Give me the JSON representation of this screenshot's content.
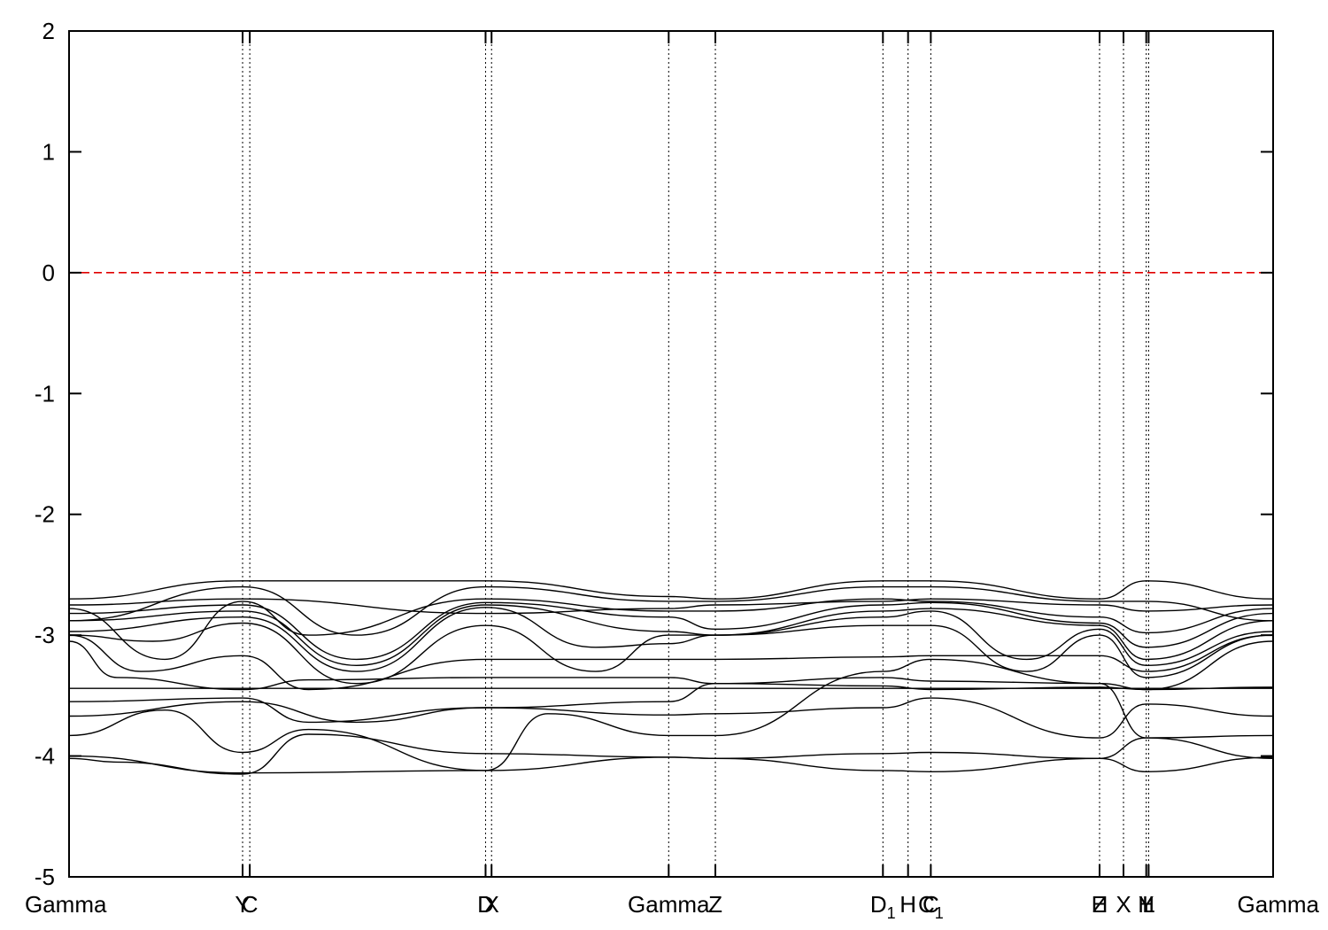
{
  "chart_data": {
    "type": "line",
    "title": "",
    "xlabel": "",
    "ylabel": "",
    "ylim": [
      -5,
      2
    ],
    "xlim": [
      0,
      5.03
    ],
    "y_ticks": [
      2,
      1,
      0,
      -1,
      -2,
      -3,
      -4,
      -5
    ],
    "y_tick_labels": [
      "2",
      "1",
      "0",
      "-1",
      "-2",
      "-3",
      "-4",
      "-5"
    ],
    "kpoints": [
      {
        "label": "Gamma",
        "x": 0.0
      },
      {
        "label": "Y",
        "x": 0.725
      },
      {
        "label": "C",
        "x": 0.755
      },
      {
        "label": "D",
        "x": 1.74
      },
      {
        "label": "X",
        "x": 1.765
      },
      {
        "label": "Gamma",
        "x": 2.505
      },
      {
        "label": "Z",
        "x": 2.7
      },
      {
        "label": "D",
        "sub": "1",
        "x": 3.4
      },
      {
        "label": "H",
        "x": 3.505
      },
      {
        "label": "C",
        "x": 3.6
      },
      {
        "label": "C",
        "sub": "1",
        "x": 3.6
      },
      {
        "label": "Z",
        "x": 4.305
      },
      {
        "label": "H",
        "x": 4.305
      },
      {
        "label": "X",
        "x": 4.405
      },
      {
        "label": "Y",
        "x": 4.5
      },
      {
        "label": "H",
        "x": 4.5
      },
      {
        "label": "L",
        "x": 4.51
      },
      {
        "label": "Gamma",
        "x": 5.03
      }
    ],
    "fermi_level": {
      "y": 0,
      "color": "#e00000"
    },
    "band_color": "#000000",
    "bands": [
      {
        "x": [
          0,
          0.725,
          1.74,
          2.505,
          2.7,
          3.4,
          3.6,
          4.305,
          4.5,
          5.03
        ],
        "y": [
          -4.0,
          -4.14,
          -4.12,
          -4.01,
          -4.02,
          -4.12,
          -4.13,
          -4.02,
          -4.13,
          -4.01
        ]
      },
      {
        "x": [
          0,
          0.2,
          0.725,
          1.0,
          1.74,
          2.505,
          2.7,
          3.4,
          3.6,
          4.305,
          4.5,
          5.03
        ],
        "y": [
          -4.02,
          -4.05,
          -4.15,
          -3.82,
          -3.98,
          -4.01,
          -4.02,
          -3.98,
          -3.97,
          -4.02,
          -3.85,
          -4.02
        ]
      },
      {
        "x": [
          0,
          0.4,
          0.725,
          1.0,
          1.74,
          2.0,
          2.505,
          2.7,
          3.4,
          3.6,
          4.305,
          4.5,
          5.03
        ],
        "y": [
          -3.83,
          -3.62,
          -3.97,
          -3.78,
          -4.12,
          -3.65,
          -3.83,
          -3.83,
          -3.3,
          -3.2,
          -3.4,
          -3.85,
          -3.83
        ]
      },
      {
        "x": [
          0,
          0.725,
          1.2,
          1.74,
          2.505,
          2.7,
          3.4,
          3.6,
          4.305,
          4.5,
          5.03
        ],
        "y": [
          -3.67,
          -3.55,
          -3.72,
          -3.6,
          -3.66,
          -3.65,
          -3.6,
          -3.52,
          -3.85,
          -3.57,
          -3.67
        ]
      },
      {
        "x": [
          0,
          0.725,
          1.0,
          1.74,
          2.505,
          2.7,
          3.4,
          3.6,
          4.305,
          4.5,
          5.03
        ],
        "y": [
          -3.55,
          -3.52,
          -3.72,
          -3.6,
          -3.55,
          -3.4,
          -3.42,
          -3.45,
          -3.43,
          -3.45,
          -3.43
        ]
      },
      {
        "x": [
          0,
          0.725,
          1.74,
          2.505,
          2.7,
          3.4,
          3.6,
          4.305,
          4.5,
          5.03
        ],
        "y": [
          -3.44,
          -3.44,
          -3.44,
          -3.44,
          -3.44,
          -3.44,
          -3.44,
          -3.44,
          -3.44,
          -3.44
        ]
      },
      {
        "x": [
          0,
          0.2,
          0.725,
          1.0,
          1.74,
          2.505,
          2.7,
          3.4,
          3.6,
          4.305,
          4.5,
          5.03
        ],
        "y": [
          -3.05,
          -3.35,
          -3.45,
          -3.37,
          -3.35,
          -3.35,
          -3.4,
          -3.35,
          -3.38,
          -3.4,
          -3.45,
          -3.05
        ]
      },
      {
        "x": [
          0,
          0.3,
          0.725,
          1.0,
          1.74,
          2.505,
          2.7,
          3.4,
          3.6,
          4.305,
          4.5,
          5.03
        ],
        "y": [
          -3.0,
          -3.3,
          -3.17,
          -3.45,
          -3.2,
          -3.2,
          -3.2,
          -3.18,
          -3.17,
          -3.17,
          -3.3,
          -3.0
        ]
      },
      {
        "x": [
          0,
          0.35,
          0.725,
          1.2,
          1.74,
          2.2,
          2.505,
          2.7,
          3.4,
          3.6,
          4.0,
          4.305,
          4.5,
          5.03
        ],
        "y": [
          -3.0,
          -3.05,
          -2.9,
          -3.4,
          -2.92,
          -3.3,
          -3.0,
          -3.0,
          -2.92,
          -2.92,
          -3.3,
          -3.0,
          -3.35,
          -3.0
        ]
      },
      {
        "x": [
          0,
          0.725,
          1.2,
          1.74,
          2.2,
          2.505,
          2.7,
          3.4,
          3.6,
          4.0,
          4.305,
          4.5,
          5.03
        ],
        "y": [
          -2.97,
          -2.85,
          -3.3,
          -2.77,
          -3.1,
          -3.07,
          -3.0,
          -2.85,
          -2.8,
          -3.2,
          -2.95,
          -3.25,
          -2.97
        ]
      },
      {
        "x": [
          0,
          0.725,
          1.2,
          1.74,
          2.505,
          2.7,
          3.4,
          3.6,
          4.305,
          4.5,
          5.03
        ],
        "y": [
          -2.88,
          -2.8,
          -3.25,
          -2.75,
          -2.97,
          -3.0,
          -2.8,
          -2.78,
          -2.92,
          -3.2,
          -2.88
        ]
      },
      {
        "x": [
          0,
          0.725,
          1.2,
          1.74,
          2.505,
          2.7,
          3.4,
          3.6,
          4.305,
          4.5,
          5.03
        ],
        "y": [
          -2.82,
          -2.75,
          -3.2,
          -2.73,
          -2.85,
          -2.95,
          -2.75,
          -2.73,
          -2.9,
          -3.1,
          -2.82
        ]
      },
      {
        "x": [
          0,
          0.4,
          0.725,
          1.0,
          1.74,
          2.505,
          2.7,
          3.4,
          3.6,
          4.305,
          4.5,
          5.03
        ],
        "y": [
          -2.78,
          -3.2,
          -2.72,
          -3.0,
          -2.7,
          -2.8,
          -2.8,
          -2.7,
          -2.72,
          -2.85,
          -2.98,
          -2.78
        ]
      },
      {
        "x": [
          0,
          0.725,
          1.74,
          2.505,
          2.7,
          3.4,
          3.6,
          4.305,
          4.5,
          5.03
        ],
        "y": [
          -2.75,
          -2.7,
          -2.82,
          -2.78,
          -2.75,
          -2.72,
          -2.7,
          -2.75,
          -2.8,
          -2.75
        ]
      },
      {
        "x": [
          0,
          0.725,
          1.74,
          2.505,
          2.7,
          3.4,
          3.6,
          4.305,
          4.5,
          5.03
        ],
        "y": [
          -2.7,
          -2.55,
          -2.55,
          -2.68,
          -2.7,
          -2.55,
          -2.55,
          -2.7,
          -2.55,
          -2.7
        ]
      },
      {
        "x": [
          0,
          0.725,
          1.2,
          1.74,
          2.505,
          2.7,
          3.4,
          3.6,
          4.305,
          4.5,
          5.03
        ],
        "y": [
          -2.88,
          -2.6,
          -3.0,
          -2.6,
          -2.72,
          -2.72,
          -2.6,
          -2.6,
          -2.72,
          -2.72,
          -2.88
        ]
      }
    ]
  }
}
